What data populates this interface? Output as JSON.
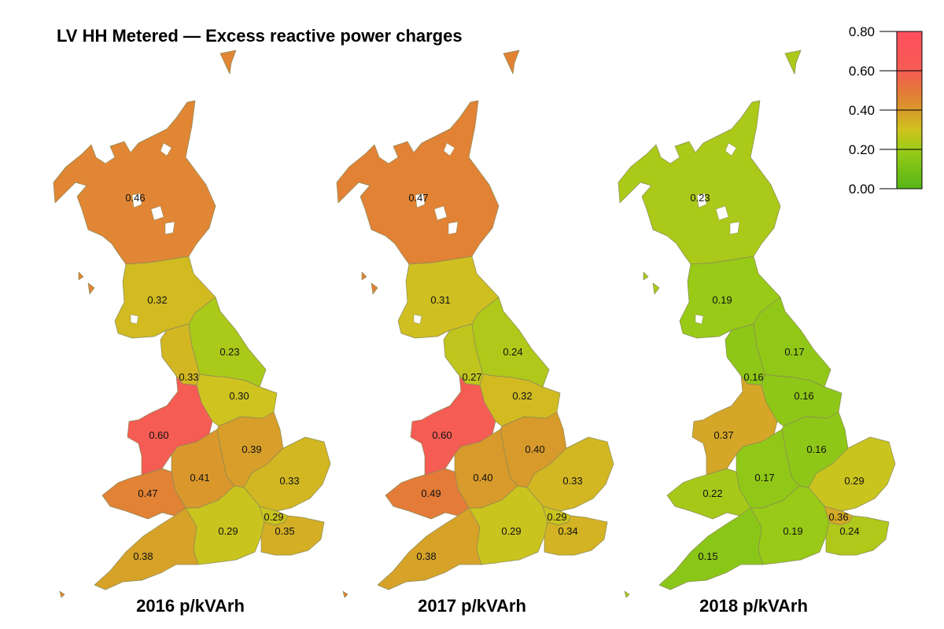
{
  "title": "LV HH Metered — Excess reactive power charges",
  "colorscale": {
    "stops": [
      {
        "value": 0.0,
        "color": "#55b617"
      },
      {
        "value": 0.2,
        "color": "#9ccb17"
      },
      {
        "value": 0.3,
        "color": "#cfc31f"
      },
      {
        "value": 0.4,
        "color": "#d89a2a"
      },
      {
        "value": 0.5,
        "color": "#e5783a"
      },
      {
        "value": 0.6,
        "color": "#f55c53"
      },
      {
        "value": 0.8,
        "color": "#ff4f5e"
      }
    ],
    "ticks": [
      "0.00",
      "0.20",
      "0.40",
      "0.60",
      "0.80"
    ]
  },
  "maps": [
    {
      "caption": "2016 p/kVArh",
      "regions": [
        {
          "id": "north-scotland",
          "value": 0.46,
          "label": "0.46"
        },
        {
          "id": "south-scotland",
          "value": 0.32,
          "label": "0.32"
        },
        {
          "id": "north-west",
          "value": 0.33,
          "label": "0.33"
        },
        {
          "id": "north-east",
          "value": 0.23,
          "label": "0.23"
        },
        {
          "id": "yorkshire",
          "value": 0.3,
          "label": "0.30"
        },
        {
          "id": "merseyside-north-wales",
          "value": 0.6,
          "label": "0.60"
        },
        {
          "id": "midlands",
          "value": 0.41,
          "label": "0.41"
        },
        {
          "id": "east-midlands",
          "value": 0.39,
          "label": "0.39"
        },
        {
          "id": "eastern",
          "value": 0.33,
          "label": "0.33"
        },
        {
          "id": "south-wales",
          "value": 0.47,
          "label": "0.47"
        },
        {
          "id": "southern",
          "value": 0.29,
          "label": "0.29"
        },
        {
          "id": "london",
          "value": 0.29,
          "label": "0.29"
        },
        {
          "id": "south-east",
          "value": 0.35,
          "label": "0.35"
        },
        {
          "id": "south-west",
          "value": 0.38,
          "label": "0.38"
        }
      ]
    },
    {
      "caption": "2017 p/kVArh",
      "regions": [
        {
          "id": "north-scotland",
          "value": 0.47,
          "label": "0.47"
        },
        {
          "id": "south-scotland",
          "value": 0.31,
          "label": "0.31"
        },
        {
          "id": "north-west",
          "value": 0.27,
          "label": "0.27"
        },
        {
          "id": "north-east",
          "value": 0.24,
          "label": "0.24"
        },
        {
          "id": "yorkshire",
          "value": 0.32,
          "label": "0.32"
        },
        {
          "id": "merseyside-north-wales",
          "value": 0.6,
          "label": "0.60"
        },
        {
          "id": "midlands",
          "value": 0.4,
          "label": "0.40"
        },
        {
          "id": "east-midlands",
          "value": 0.4,
          "label": "0.40"
        },
        {
          "id": "eastern",
          "value": 0.33,
          "label": "0.33"
        },
        {
          "id": "south-wales",
          "value": 0.49,
          "label": "0.49"
        },
        {
          "id": "southern",
          "value": 0.29,
          "label": "0.29"
        },
        {
          "id": "london",
          "value": 0.29,
          "label": "0.29"
        },
        {
          "id": "south-east",
          "value": 0.34,
          "label": "0.34"
        },
        {
          "id": "south-west",
          "value": 0.38,
          "label": "0.38"
        }
      ]
    },
    {
      "caption": "2018 p/kVArh",
      "regions": [
        {
          "id": "north-scotland",
          "value": 0.23,
          "label": "0.23"
        },
        {
          "id": "south-scotland",
          "value": 0.19,
          "label": "0.19"
        },
        {
          "id": "north-west",
          "value": 0.16,
          "label": "0.16"
        },
        {
          "id": "north-east",
          "value": 0.17,
          "label": "0.17"
        },
        {
          "id": "yorkshire",
          "value": 0.16,
          "label": "0.16"
        },
        {
          "id": "merseyside-north-wales",
          "value": 0.37,
          "label": "0.37"
        },
        {
          "id": "midlands",
          "value": 0.17,
          "label": "0.17"
        },
        {
          "id": "east-midlands",
          "value": 0.16,
          "label": "0.16"
        },
        {
          "id": "eastern",
          "value": 0.29,
          "label": "0.29"
        },
        {
          "id": "south-wales",
          "value": 0.22,
          "label": "0.22"
        },
        {
          "id": "southern",
          "value": 0.19,
          "label": "0.19"
        },
        {
          "id": "london",
          "value": 0.36,
          "label": "0.36"
        },
        {
          "id": "south-east",
          "value": 0.24,
          "label": "0.24"
        },
        {
          "id": "south-west",
          "value": 0.15,
          "label": "0.15"
        }
      ]
    }
  ]
}
